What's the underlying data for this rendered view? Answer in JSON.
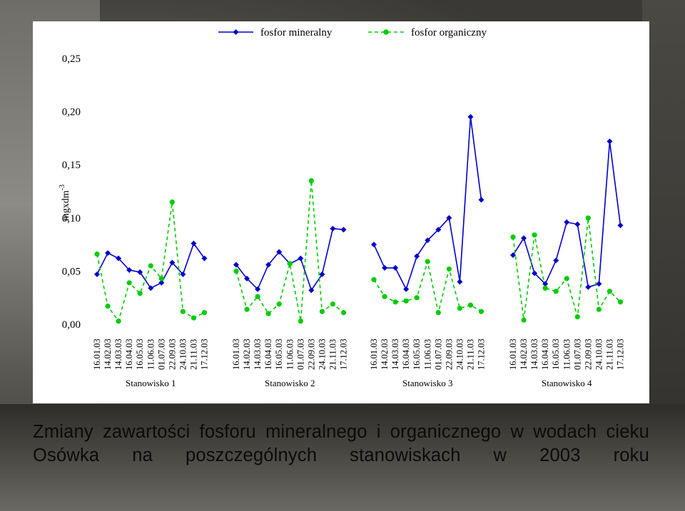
{
  "caption": "Zmiany zawartości fosforu mineralnego i organicznego w wodach cieku Osówka na poszczególnych stanowiskach w 2003 roku",
  "chart_data": {
    "type": "line",
    "ylabel": "mgxdm-3",
    "ylabel_base": "mgxdm",
    "ylabel_sup": "-3",
    "ylim": [
      0,
      0.25
    ],
    "yticks": [
      "0,00",
      "0,05",
      "0,10",
      "0,15",
      "0,20",
      "0,25"
    ],
    "grid": false,
    "legend_position": "top",
    "groups": [
      "Stanowisko 1",
      "Stanowisko 2",
      "Stanowisko 3",
      "Stanowisko 4"
    ],
    "categories": [
      "16.01.03",
      "14.02.03",
      "14.03.03",
      "16.04.03",
      "16.05.03",
      "11.06.03",
      "01.07.03",
      "22.09.03",
      "24.10.03",
      "21.11.03",
      "17.12.03"
    ],
    "series": [
      {
        "name": "fosfor mineralny",
        "color": "#0000cc",
        "style": "solid",
        "marker": "diamond",
        "values": [
          [
            0.047,
            0.067,
            0.062,
            0.051,
            0.049,
            0.034,
            0.039,
            0.058,
            0.047,
            0.076,
            0.062
          ],
          [
            0.056,
            0.043,
            0.033,
            0.056,
            0.068,
            0.057,
            0.062,
            0.032,
            0.047,
            0.09,
            0.089
          ],
          [
            0.075,
            0.053,
            0.053,
            0.033,
            0.064,
            0.079,
            0.089,
            0.1,
            0.04,
            0.195,
            0.117
          ],
          [
            0.065,
            0.081,
            0.048,
            0.038,
            0.06,
            0.096,
            0.094,
            0.035,
            0.038,
            0.172,
            0.093
          ]
        ]
      },
      {
        "name": "fosfor organiczny",
        "color": "#00cc00",
        "style": "dashed",
        "marker": "circle",
        "values": [
          [
            0.066,
            0.017,
            0.003,
            0.039,
            0.029,
            0.055,
            0.043,
            0.115,
            0.012,
            0.006,
            0.011
          ],
          [
            0.05,
            0.014,
            0.026,
            0.01,
            0.019,
            0.057,
            0.003,
            0.135,
            0.012,
            0.019,
            0.011
          ],
          [
            0.042,
            0.026,
            0.021,
            0.022,
            0.025,
            0.059,
            0.011,
            0.052,
            0.015,
            0.018,
            0.012
          ],
          [
            0.082,
            0.004,
            0.084,
            0.034,
            0.031,
            0.043,
            0.007,
            0.1,
            0.014,
            0.031,
            0.021
          ]
        ]
      }
    ]
  }
}
